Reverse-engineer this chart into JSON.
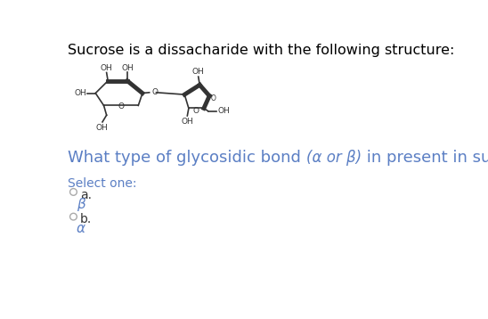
{
  "title_text": "Sucrose is a dissacharide with the following structure:",
  "title_color": "#000000",
  "title_fontsize": 11.5,
  "question_prefix": "What type of glycosidic bond ",
  "question_italic": "(α or β)",
  "question_suffix": " in present in sucrose?",
  "question_color": "#5b7fc4",
  "question_fontsize": 13,
  "select_text": "Select one:",
  "select_color": "#5b7fc4",
  "select_fontsize": 10,
  "opt_a_label": "a.",
  "opt_a_answer": "β",
  "opt_b_label": "b.",
  "opt_b_answer": "α",
  "circle_color": "#aaaaaa",
  "answer_color": "#5b7fc4",
  "text_color": "#333333",
  "background_color": "#ffffff",
  "ring_color": "#333333",
  "ring_lw": 1.2
}
